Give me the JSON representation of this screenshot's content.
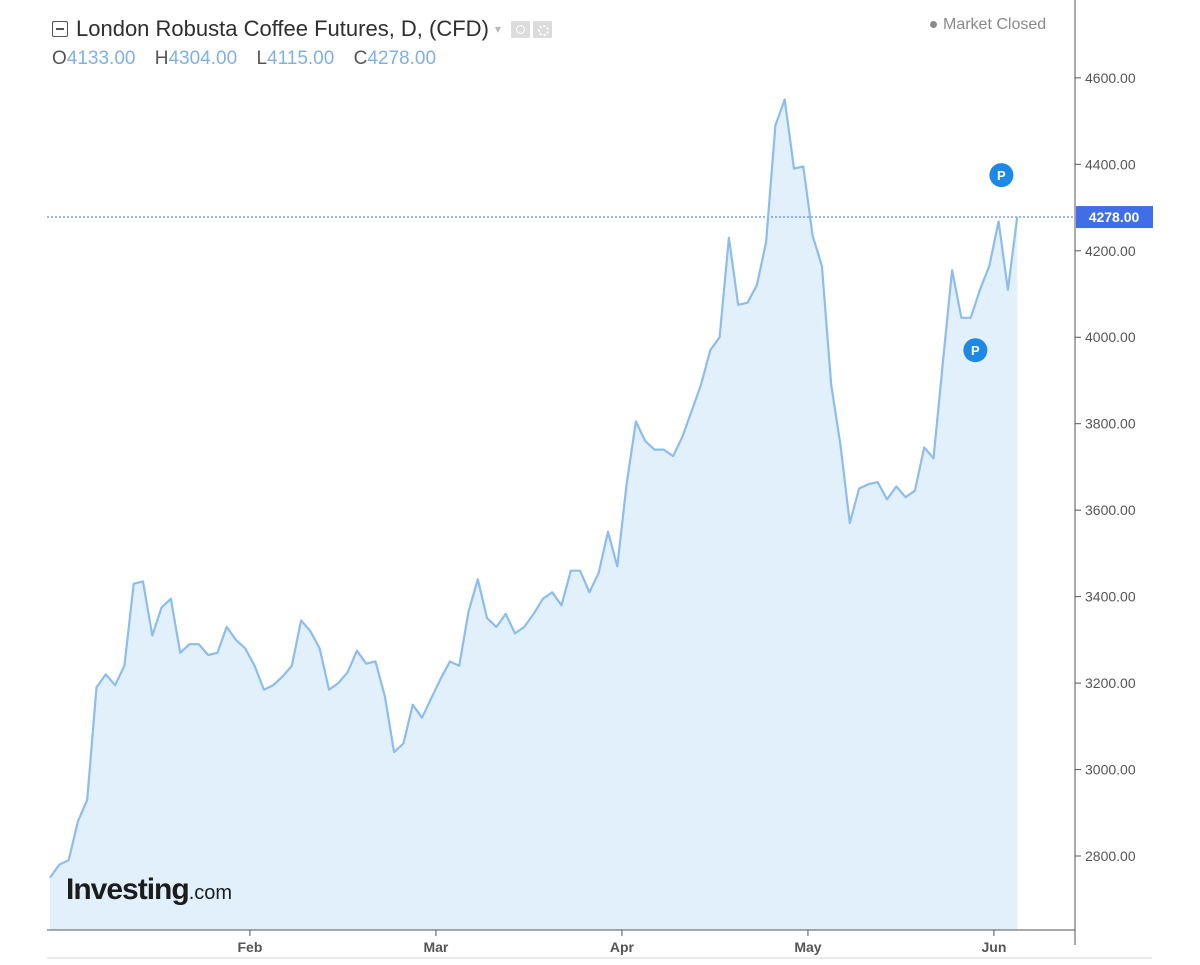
{
  "header": {
    "title": "London Robusta Coffee Futures, D, (CFD)",
    "ohlc": [
      {
        "key": "O",
        "value": "4133.00"
      },
      {
        "key": "H",
        "value": "4304.00"
      },
      {
        "key": "L",
        "value": "4115.00"
      },
      {
        "key": "C",
        "value": "4278.00"
      }
    ],
    "market_status": "Market Closed"
  },
  "logo": {
    "main": "Investing",
    "sub": ".com"
  },
  "colors": {
    "line": "#8dbdec",
    "fill": "#e1f0fa",
    "price_label_bg": "#3f6ee8",
    "marker": "#1e88e5",
    "axis_text": "#555555"
  },
  "chart_data": {
    "type": "area",
    "x_labels": [
      "Feb",
      "Mar",
      "Apr",
      "May",
      "Jun"
    ],
    "x_label_positions": [
      21.5,
      41.5,
      61.5,
      81.5,
      101.5
    ],
    "ylim": [
      2650,
      4750
    ],
    "y_ticks": [
      2800,
      3000,
      3200,
      3400,
      3600,
      3800,
      4000,
      4200,
      4400,
      4600
    ],
    "y_tick_labels": [
      "2800.00",
      "3000.00",
      "3200.00",
      "3400.00",
      "3600.00",
      "3800.00",
      "4000.00",
      "4200.00",
      "4400.00",
      "4600.00"
    ],
    "last_price": 4278,
    "last_price_label": "4278.00",
    "grid": false,
    "series": [
      {
        "values": [
          2750,
          2780,
          2790,
          2880,
          2930,
          3190,
          3220,
          3195,
          3240,
          3430,
          3435,
          3310,
          3375,
          3395,
          3270,
          3290,
          3290,
          3265,
          3270,
          3330,
          3300,
          3280,
          3240,
          3185,
          3195,
          3215,
          3240,
          3345,
          3320,
          3280,
          3185,
          3200,
          3225,
          3275,
          3245,
          3250,
          3170,
          3040,
          3060,
          3150,
          3120,
          3165,
          3210,
          3250,
          3240,
          3365,
          3440,
          3350,
          3330,
          3360,
          3315,
          3330,
          3360,
          3395,
          3410,
          3380,
          3460,
          3460,
          3410,
          3455,
          3550,
          3470,
          3660,
          3805,
          3760,
          3740,
          3740,
          3725,
          3770,
          3830,
          3890,
          3970,
          4000,
          4230,
          4075,
          4080,
          4120,
          4220,
          4490,
          4550,
          4390,
          4395,
          4235,
          4165,
          3890,
          3750,
          3570,
          3650,
          3660,
          3665,
          3625,
          3655,
          3630,
          3645,
          3745,
          3720,
          3940,
          4155,
          4045,
          4045,
          4110,
          4165,
          4268,
          4110,
          4278
        ]
      }
    ],
    "markers": [
      {
        "label": "P",
        "index": 102.3,
        "value": 4375
      },
      {
        "label": "P",
        "index": 99.5,
        "value": 3970
      }
    ]
  }
}
